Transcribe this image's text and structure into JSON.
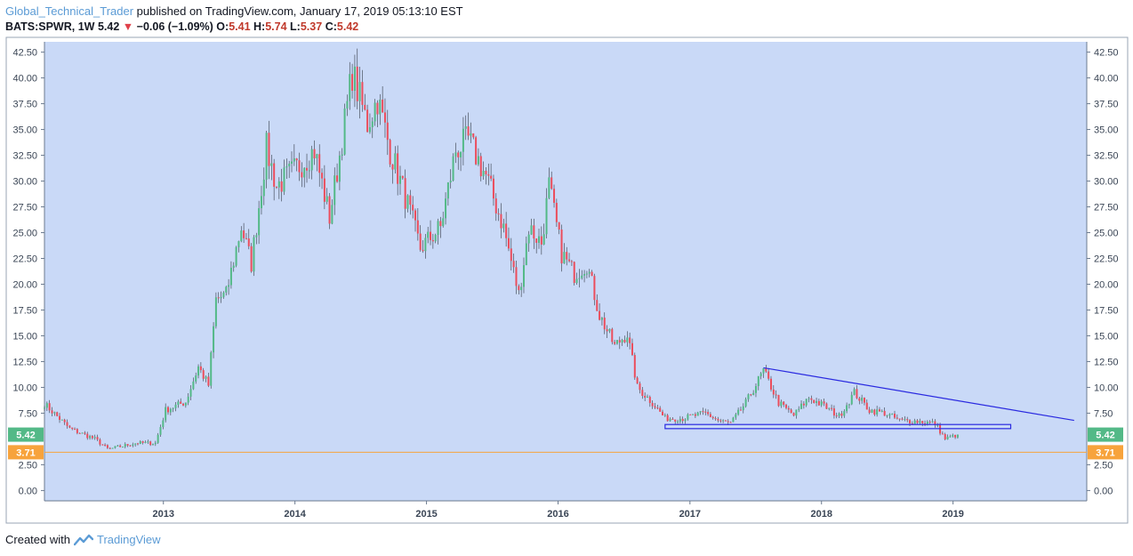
{
  "header": {
    "author": "Global_Technical_Trader",
    "published": "published on TradingView.com, January 17, 2019 05:13:10 EST"
  },
  "ticker": {
    "symbol": "BATS:SPWR, 1W",
    "price": "5.42",
    "change": "−0.06 (−1.09%)",
    "o_label": "O:",
    "o": "5.41",
    "h_label": "H:",
    "h": "5.74",
    "l_label": "L:",
    "l": "5.37",
    "c_label": "C:",
    "c": "5.42"
  },
  "footer": {
    "created_with": "Created with",
    "brand": "TradingView"
  },
  "colors": {
    "plot_bg": "#c9d9f7",
    "up": "#53b987",
    "down": "#eb4d5c",
    "trendline": "#2a2ae0",
    "support_line": "#f7a33c",
    "price_tag": "#53b987",
    "support_tag": "#f7a33c"
  },
  "chart_data": {
    "type": "candlestick",
    "y_ticks": [
      "42.50",
      "40.00",
      "37.50",
      "35.00",
      "32.50",
      "30.00",
      "27.50",
      "25.00",
      "22.50",
      "20.00",
      "17.50",
      "15.00",
      "12.50",
      "10.00",
      "7.50",
      "2.50",
      "0.00"
    ],
    "ylim": [
      -1,
      43.5
    ],
    "x_ticks": [
      {
        "label": "2013",
        "date": "2013-01-01"
      },
      {
        "label": "2014",
        "date": "2014-01-01"
      },
      {
        "label": "2015",
        "date": "2015-01-01"
      },
      {
        "label": "2016",
        "date": "2016-01-01"
      },
      {
        "label": "2017",
        "date": "2017-01-01"
      },
      {
        "label": "2018",
        "date": "2018-01-01"
      },
      {
        "label": "2019",
        "date": "2019-01-01"
      }
    ],
    "xlim": [
      "2012-02-06",
      "2020-01-07"
    ],
    "price_tag": {
      "label": "5.42",
      "value": 5.42
    },
    "support_tag": {
      "label": "3.71",
      "value": 3.71
    },
    "trendline": {
      "start": {
        "date": "2017-07-24",
        "value": 11.9
      },
      "end": {
        "date": "2019-12-03",
        "value": 6.8
      }
    },
    "range_box": {
      "start_date": "2016-10-24",
      "end_date": "2019-06-10",
      "low": 6.0,
      "high": 6.4
    },
    "anchors": [
      [
        "2012-02-06",
        8.4
      ],
      [
        "2012-04-16",
        6.0
      ],
      [
        "2012-06-25",
        5.0
      ],
      [
        "2012-08-01",
        4.0
      ],
      [
        "2012-10-15",
        4.6
      ],
      [
        "2012-12-10",
        4.6
      ],
      [
        "2013-01-07",
        7.8
      ],
      [
        "2013-03-04",
        8.6
      ],
      [
        "2013-04-08",
        12.0
      ],
      [
        "2013-05-06",
        10.2
      ],
      [
        "2013-05-27",
        18.5
      ],
      [
        "2013-06-24",
        19.0
      ],
      [
        "2013-08-05",
        25.6
      ],
      [
        "2013-09-02",
        22.0
      ],
      [
        "2013-10-14",
        33.2
      ],
      [
        "2013-11-11",
        29.5
      ],
      [
        "2014-01-13",
        31.5
      ],
      [
        "2014-02-24",
        33.0
      ],
      [
        "2014-04-07",
        26.5
      ],
      [
        "2014-05-05",
        32.5
      ],
      [
        "2014-06-09",
        40.5
      ],
      [
        "2014-07-21",
        35.5
      ],
      [
        "2014-08-18",
        38.0
      ],
      [
        "2014-09-22",
        33.0
      ],
      [
        "2014-11-03",
        28.5
      ],
      [
        "2014-12-15",
        23.5
      ],
      [
        "2015-02-09",
        25.5
      ],
      [
        "2015-03-23",
        33.0
      ],
      [
        "2015-04-27",
        34.0
      ],
      [
        "2015-06-15",
        30.5
      ],
      [
        "2015-08-03",
        25.5
      ],
      [
        "2015-09-14",
        19.0
      ],
      [
        "2015-10-12",
        25.5
      ],
      [
        "2015-11-16",
        24.0
      ],
      [
        "2015-12-07",
        29.5
      ],
      [
        "2016-01-11",
        23.0
      ],
      [
        "2016-02-15",
        21.0
      ],
      [
        "2016-03-21",
        22.0
      ],
      [
        "2016-04-25",
        17.0
      ],
      [
        "2016-06-06",
        14.0
      ],
      [
        "2016-07-11",
        15.2
      ],
      [
        "2016-08-08",
        10.0
      ],
      [
        "2016-09-19",
        8.5
      ],
      [
        "2016-10-24",
        7.0
      ],
      [
        "2016-12-12",
        7.0
      ],
      [
        "2017-02-13",
        7.5
      ],
      [
        "2017-03-20",
        6.8
      ],
      [
        "2017-04-24",
        6.5
      ],
      [
        "2017-06-05",
        8.5
      ],
      [
        "2017-07-24",
        11.6
      ],
      [
        "2017-09-04",
        8.5
      ],
      [
        "2017-10-16",
        7.3
      ],
      [
        "2017-11-27",
        9.0
      ],
      [
        "2018-01-08",
        8.2
      ],
      [
        "2018-02-19",
        7.2
      ],
      [
        "2018-04-02",
        9.5
      ],
      [
        "2018-05-14",
        7.8
      ],
      [
        "2018-06-25",
        7.5
      ],
      [
        "2018-08-06",
        6.8
      ],
      [
        "2018-10-01",
        6.7
      ],
      [
        "2018-11-12",
        6.5
      ],
      [
        "2018-12-10",
        5.0
      ],
      [
        "2019-01-14",
        5.42
      ]
    ]
  }
}
